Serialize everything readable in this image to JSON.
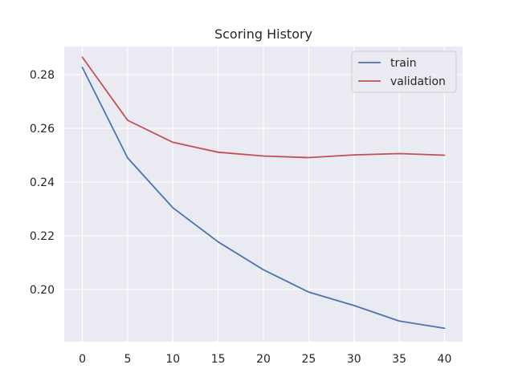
{
  "chart_data": {
    "type": "line",
    "title": "Scoring History",
    "xlabel": "",
    "ylabel": "",
    "x": [
      0,
      5,
      10,
      15,
      20,
      25,
      30,
      35,
      40
    ],
    "series": [
      {
        "name": "train",
        "color": "#4c72b0",
        "values": [
          0.2827,
          0.249,
          0.2304,
          0.2177,
          0.2073,
          0.199,
          0.194,
          0.1882,
          0.1855
        ]
      },
      {
        "name": "validation",
        "color": "#c44e52",
        "values": [
          0.2865,
          0.263,
          0.2548,
          0.2511,
          0.2497,
          0.2491,
          0.2501,
          0.2506,
          0.25
        ]
      }
    ],
    "xlim": [
      -2,
      42
    ],
    "ylim": [
      0.1805,
      0.2905
    ],
    "xticks": [
      0,
      5,
      10,
      15,
      20,
      25,
      30,
      35,
      40
    ],
    "yticks": [
      0.2,
      0.22,
      0.24,
      0.26,
      0.28
    ],
    "ytick_labels": [
      "0.20",
      "0.22",
      "0.24",
      "0.26",
      "0.28"
    ],
    "grid": true,
    "legend_position": "top-right",
    "background_color": "#eaeaf2",
    "grid_color": "#ffffff"
  }
}
